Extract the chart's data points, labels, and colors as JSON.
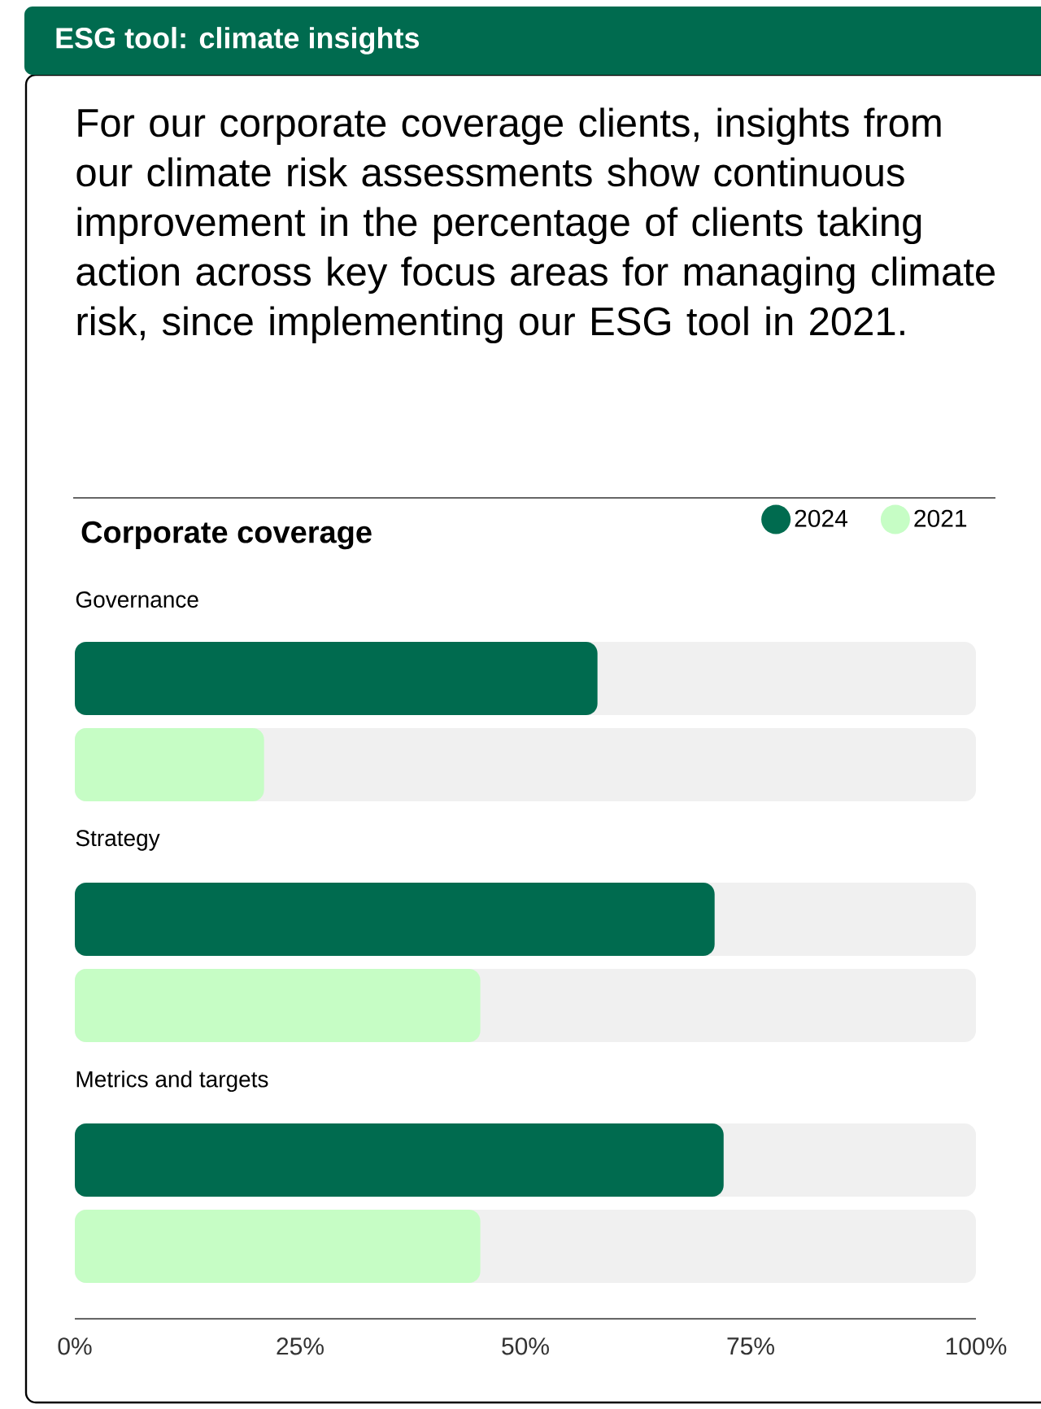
{
  "chart_data": {
    "type": "bar",
    "orientation": "horizontal",
    "title": "ESG tool: climate insights",
    "subtitle": "For our corporate coverage clients, insights from our climate risk assessments show continuous improvement in the percentage of clients taking action across key focus areas for managing climate risk, since implementing our ESG tool in 2021.",
    "annotations": [
      "Corporate coverage"
    ],
    "categories": [
      "Governance",
      "Strategy",
      "Metrics and targets"
    ],
    "series": [
      {
        "name": "2024",
        "color": "#006b4f",
        "values": [
          58,
          71,
          72
        ]
      },
      {
        "name": "2021",
        "color": "#c6fdc5",
        "values": [
          21,
          45,
          45
        ]
      }
    ],
    "xlim": [
      0,
      100
    ],
    "xticks": [
      {
        "value": 0,
        "label": "0%"
      },
      {
        "value": 25,
        "label": "25%"
      },
      {
        "value": 50,
        "label": "50%"
      },
      {
        "value": 75,
        "label": "75%"
      },
      {
        "value": 100,
        "label": "100%"
      }
    ],
    "legend": "top right"
  }
}
